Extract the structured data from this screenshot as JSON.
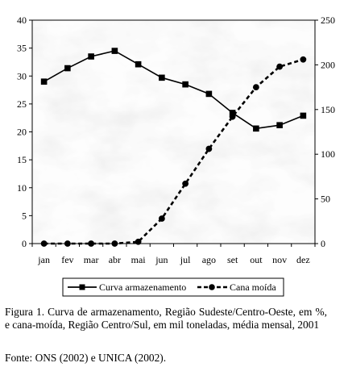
{
  "chart_data": {
    "type": "line",
    "categories": [
      "jan",
      "fev",
      "mar",
      "abr",
      "mai",
      "jun",
      "jul",
      "ago",
      "set",
      "out",
      "nov",
      "dez"
    ],
    "series": [
      {
        "name": "Curva armazenamento",
        "axis": "left",
        "style": "solid",
        "marker": "square",
        "values": [
          29.0,
          31.4,
          33.5,
          34.5,
          32.1,
          29.7,
          28.5,
          26.8,
          23.4,
          20.6,
          21.2,
          22.9
        ]
      },
      {
        "name": "Cana moída",
        "axis": "right",
        "style": "dashed",
        "marker": "circle",
        "values": [
          0,
          0,
          0,
          0,
          2,
          28,
          67,
          106,
          142,
          175,
          198,
          206
        ]
      }
    ],
    "y_left": {
      "min": 0,
      "max": 40,
      "step": 5,
      "ticks": [
        "0",
        "5",
        "10",
        "15",
        "20",
        "25",
        "30",
        "35",
        "40"
      ]
    },
    "y_right": {
      "min": 0,
      "max": 250,
      "step": 50,
      "ticks": [
        "0",
        "50",
        "100",
        "150",
        "200",
        "250"
      ]
    },
    "legend_position": "bottom",
    "background": "marble-texture"
  },
  "caption": {
    "figure": "Figura 1. Curva de armazenamento, Região Sudeste/Centro-Oeste, em %, e cana-moída, Região Centro/Sul, em mil toneladas, média mensal, 2001",
    "source": "Fonte: ONS (2002) e UNICA (2002)."
  }
}
